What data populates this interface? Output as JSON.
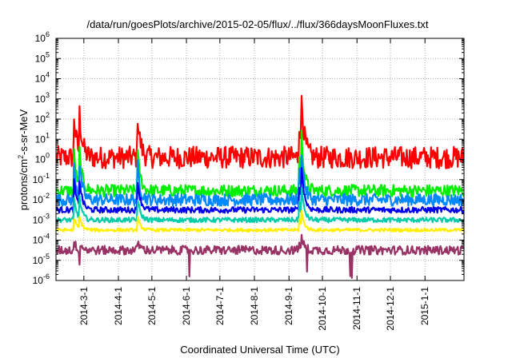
{
  "chart_data": {
    "type": "line",
    "title": "/data/run/goesPlots/archive/2015-02-05/flux/../flux/366daysMoonFluxes.txt",
    "xlabel": "Coordinated Universal Time (UTC)",
    "ylabel": {
      "prefix": "protons/cm",
      "superscript": "2",
      "suffix": "-s-sr-MeV"
    },
    "yscale": "log",
    "ylim_exponents": [
      -6,
      6
    ],
    "y_ticks": [
      {
        "base": "10",
        "exp": "-6"
      },
      {
        "base": "10",
        "exp": "-5"
      },
      {
        "base": "10",
        "exp": "-4"
      },
      {
        "base": "10",
        "exp": "-3"
      },
      {
        "base": "10",
        "exp": "-2"
      },
      {
        "base": "10",
        "exp": "-1"
      },
      {
        "base": "10",
        "exp": "0"
      },
      {
        "base": "10",
        "exp": "1"
      },
      {
        "base": "10",
        "exp": "2"
      },
      {
        "base": "10",
        "exp": "3"
      },
      {
        "base": "10",
        "exp": "4"
      },
      {
        "base": "10",
        "exp": "5"
      },
      {
        "base": "10",
        "exp": "6"
      }
    ],
    "xlim": [
      "2014-02-04",
      "2015-02-05"
    ],
    "x_ticks": [
      "2014-3-1",
      "2014-4-1",
      "2014-5-1",
      "2014-6-1",
      "2014-7-1",
      "2014-8-1",
      "2014-9-1",
      "2014-10-1",
      "2014-11-1",
      "2014-12-1",
      "2015-1-1"
    ],
    "x_tick_dates": [
      "2014-03-01",
      "2014-04-01",
      "2014-05-01",
      "2014-06-01",
      "2014-07-01",
      "2014-08-01",
      "2014-09-01",
      "2014-10-01",
      "2014-11-01",
      "2014-12-01",
      "2015-01-01"
    ],
    "grid": true,
    "event_dates": [
      "2014-02-20",
      "2014-02-25",
      "2014-04-18",
      "2014-09-10",
      "2014-09-12"
    ],
    "series": [
      {
        "color": "#ff0000",
        "baseline_log": 0.1,
        "noise": 0.55
      },
      {
        "color": "#00ee00",
        "baseline_log": -1.55,
        "noise": 0.3
      },
      {
        "color": "#0088ff",
        "baseline_log": -2.0,
        "noise": 0.3
      },
      {
        "color": "#0000ee",
        "baseline_log": -2.5,
        "noise": 0.15
      },
      {
        "color": "#00ccaa",
        "baseline_log": -3.0,
        "noise": 0.12
      },
      {
        "color": "#ffee00",
        "baseline_log": -3.5,
        "noise": 0.08
      },
      {
        "color": "#993366",
        "baseline_log": -4.5,
        "noise": 0.22
      }
    ]
  }
}
